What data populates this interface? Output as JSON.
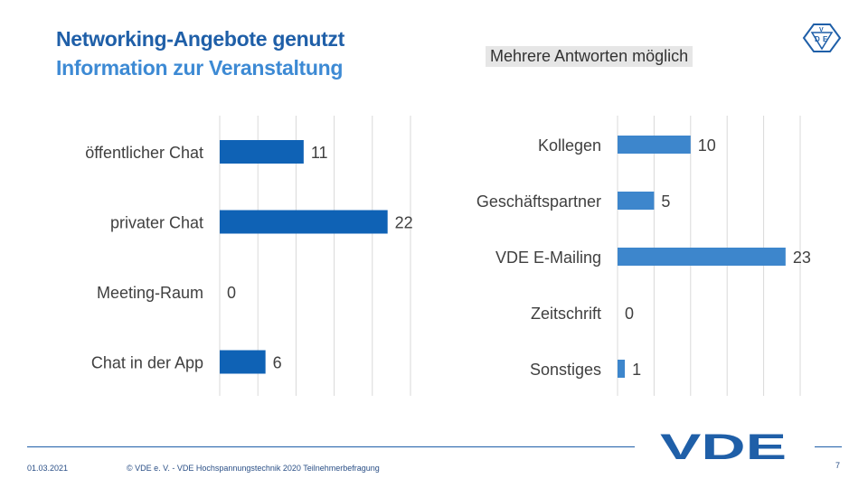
{
  "header": {
    "title": "Networking-Angebote genutzt",
    "subtitle": "Information zur Veranstaltung",
    "note": "Mehrere Antworten möglich"
  },
  "logo": {
    "text": "VDE"
  },
  "footer": {
    "date": "01.03.2021",
    "copyright": "© VDE e. V. - VDE Hochspannungstechnik 2020 Teilnehmerbefragung",
    "page": "7"
  },
  "colors": {
    "left_bar": "#0f62b5",
    "right_bar": "#3d86cc",
    "title": "#1f5fa8",
    "gridline": "#d9d9d9"
  },
  "chart_data": [
    {
      "type": "bar",
      "orientation": "horizontal",
      "categories": [
        "öffentlicher Chat",
        "privater Chat",
        "Meeting-Raum",
        "Chat in der App"
      ],
      "values": [
        11,
        22,
        0,
        6
      ],
      "xlim": [
        0,
        25
      ],
      "grid": true
    },
    {
      "type": "bar",
      "orientation": "horizontal",
      "categories": [
        "Kollegen",
        "Geschäftspartner",
        "VDE E-Mailing",
        "Zeitschrift",
        "Sonstiges"
      ],
      "values": [
        10,
        5,
        23,
        0,
        1
      ],
      "xlim": [
        0,
        25
      ],
      "grid": true
    }
  ]
}
